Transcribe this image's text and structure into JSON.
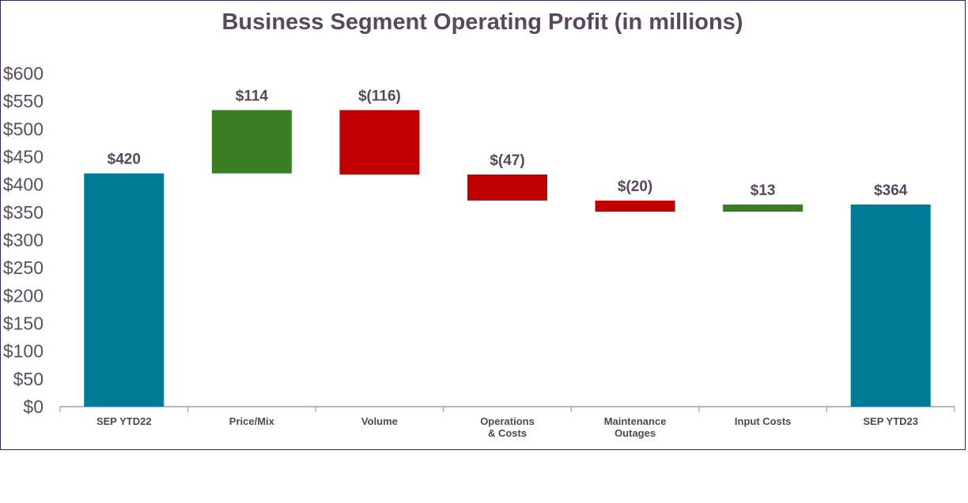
{
  "chart_data": {
    "type": "bar",
    "subtype": "waterfall",
    "title": "Business Segment Operating Profit (in millions)",
    "xlabel": "",
    "ylabel": "",
    "ylim": [
      0,
      600
    ],
    "yticks": [
      0,
      50,
      100,
      150,
      200,
      250,
      300,
      350,
      400,
      450,
      500,
      550,
      600
    ],
    "ytick_labels": [
      "$0",
      "$50",
      "$100",
      "$150",
      "$200",
      "$250",
      "$300",
      "$350",
      "$400",
      "$450",
      "$500",
      "$550",
      "$600"
    ],
    "grid": false,
    "legend": "none",
    "categories": [
      [
        "SEP YTD22"
      ],
      [
        "Price/Mix"
      ],
      [
        "Volume"
      ],
      [
        "Operations",
        "& Costs"
      ],
      [
        "Maintenance",
        "Outages"
      ],
      [
        "Input Costs"
      ],
      [
        "SEP YTD23"
      ]
    ],
    "values": [
      420,
      114,
      -116,
      -47,
      -20,
      13,
      364
    ],
    "kinds": [
      "total",
      "delta",
      "delta",
      "delta",
      "delta",
      "delta",
      "total"
    ],
    "data_labels": [
      "$420",
      "$114",
      "$(116)",
      "$(47)",
      "$(20)",
      "$13",
      "$364"
    ],
    "colors": {
      "total": "#007b96",
      "increase": "#3a7d23",
      "decrease": "#c00000",
      "text": "#58475f",
      "axis": "#a0a0a0"
    }
  }
}
